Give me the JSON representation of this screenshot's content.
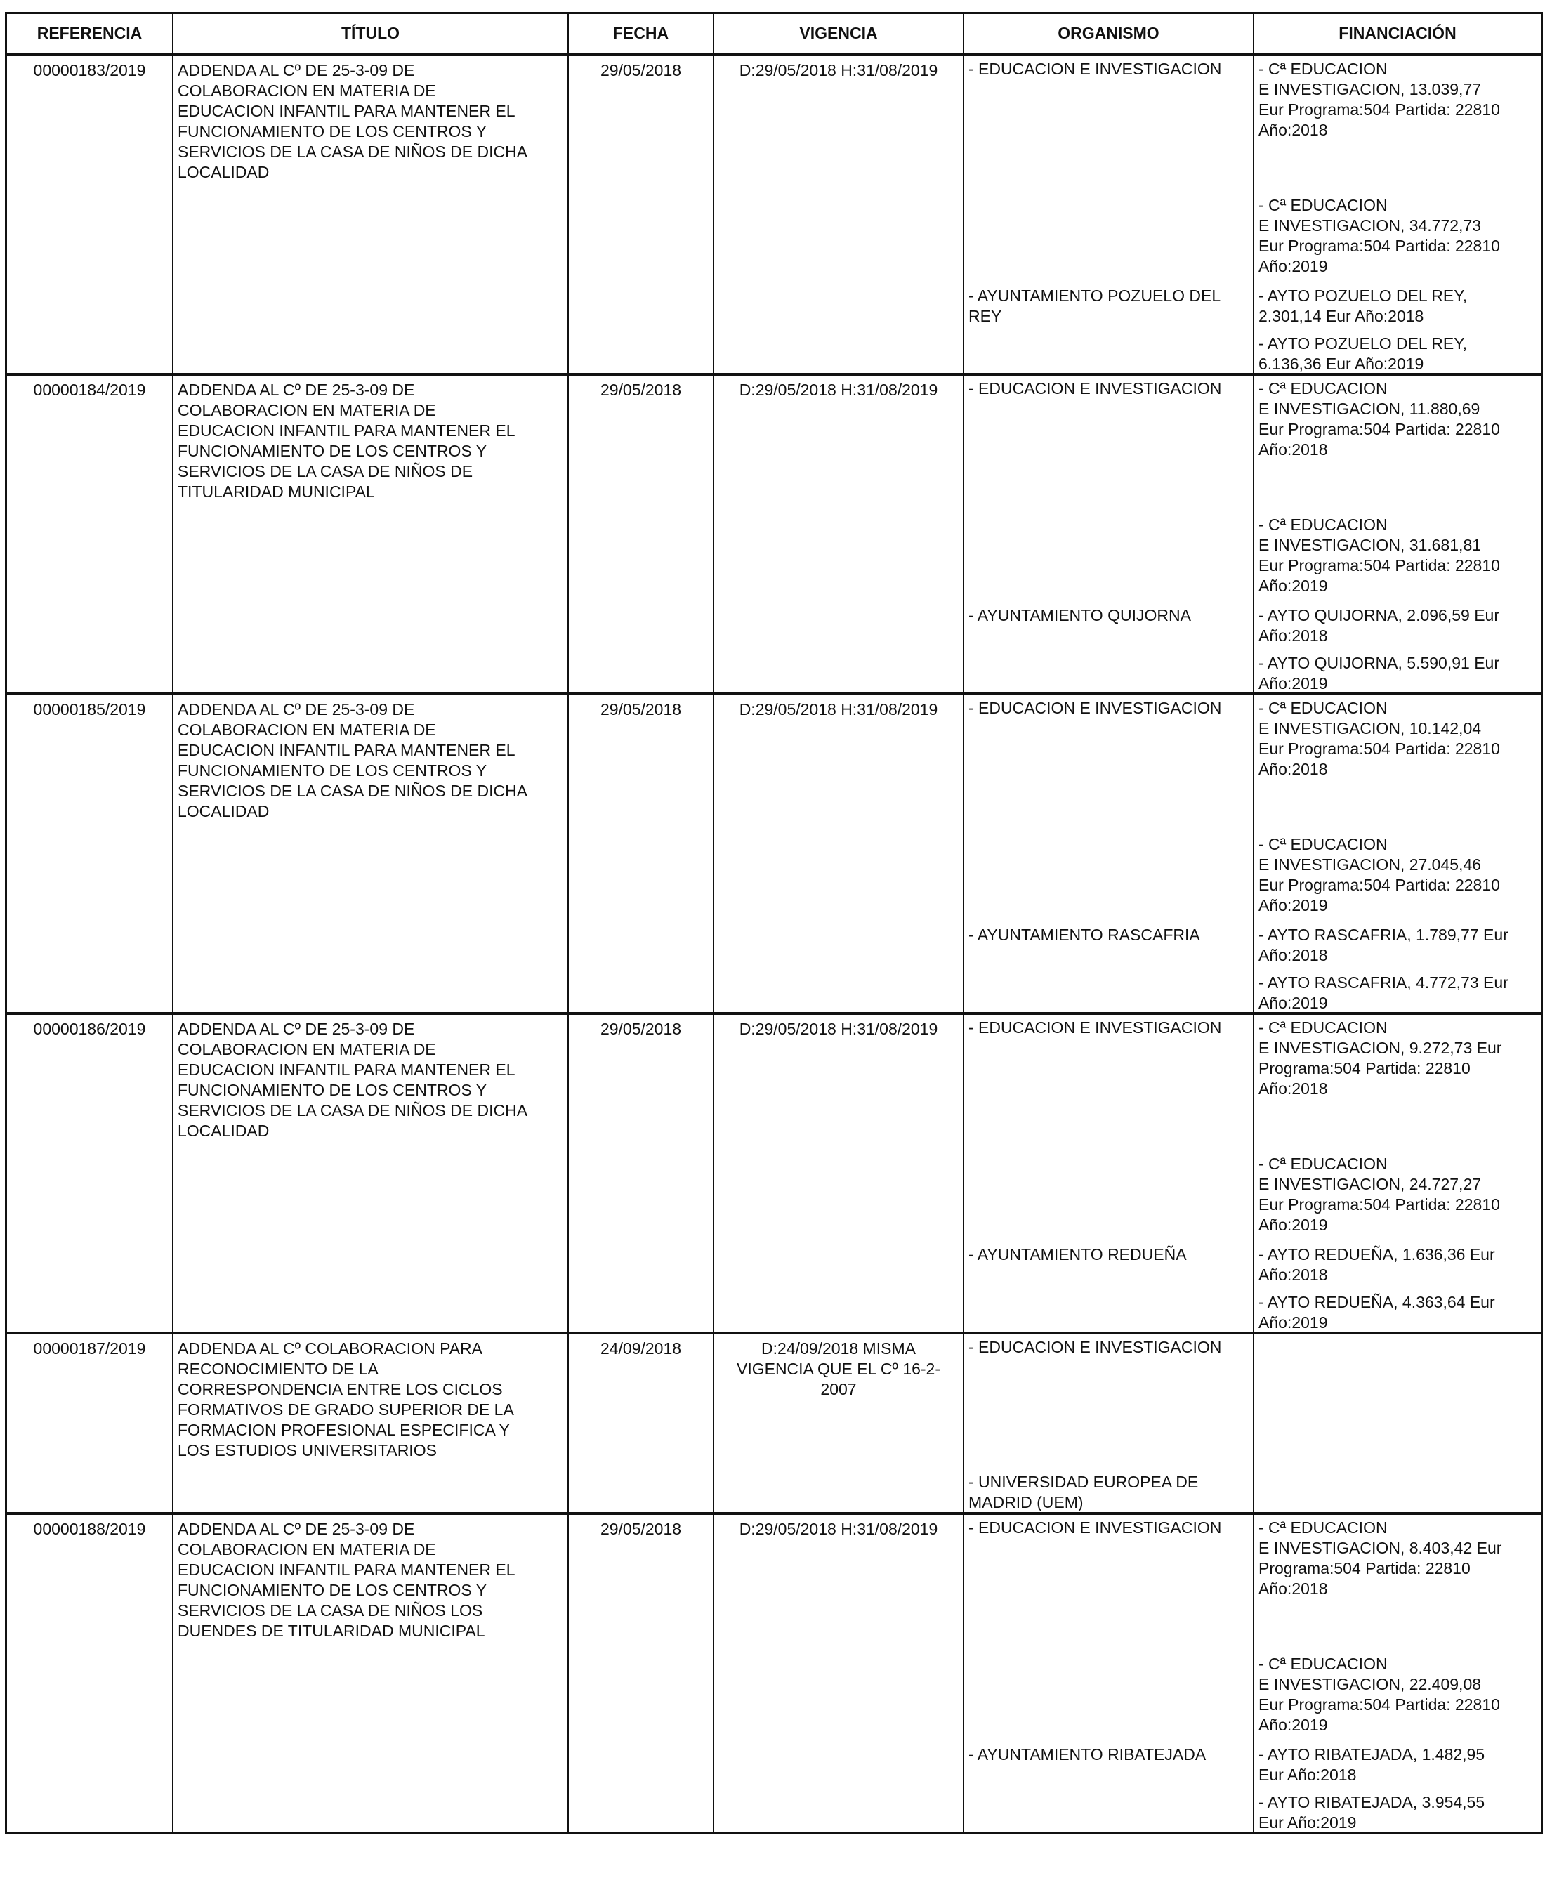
{
  "headers": [
    "REFERENCIA",
    "TÍTULO",
    "FECHA",
    "VIGENCIA",
    "ORGANISMO",
    "FINANCIACIÓN"
  ],
  "rows": [
    {
      "ref": "00000183/2019",
      "titulo": "ADDENDA AL Cº DE 25-3-09 DE\nCOLABORACION EN MATERIA DE\nEDUCACION INFANTIL PARA MANTENER EL\nFUNCIONAMIENTO DE LOS CENTROS Y\nSERVICIOS DE LA CASA DE NIÑOS DE DICHA\nLOCALIDAD",
      "fecha": "29/05/2018",
      "vigencia": "D:29/05/2018 H:31/08/2019",
      "organismos": [
        "- EDUCACION E INVESTIGACION",
        "- AYUNTAMIENTO POZUELO DEL\nREY"
      ],
      "financiacion": [
        "-  Cª EDUCACION\nE INVESTIGACION, 13.039,77\nEur Programa:504  Partida: 22810\nAño:2018",
        "-  Cª EDUCACION\nE INVESTIGACION, 34.772,73\nEur Programa:504  Partida: 22810\nAño:2019",
        "-  AYTO POZUELO DEL REY,\n2.301,14 Eur Año:2018",
        "-  AYTO POZUELO DEL REY,\n6.136,36 Eur Año:2019"
      ]
    },
    {
      "ref": "00000184/2019",
      "titulo": "ADDENDA AL Cº DE 25-3-09 DE\nCOLABORACION EN MATERIA DE\nEDUCACION INFANTIL PARA MANTENER EL\nFUNCIONAMIENTO DE LOS CENTROS Y\nSERVICIOS DE LA CASA DE NIÑOS DE\nTITULARIDAD MUNICIPAL",
      "fecha": "29/05/2018",
      "vigencia": "D:29/05/2018 H:31/08/2019",
      "organismos": [
        "- EDUCACION E INVESTIGACION",
        "- AYUNTAMIENTO QUIJORNA"
      ],
      "financiacion": [
        "-  Cª EDUCACION\nE INVESTIGACION, 11.880,69\nEur Programa:504  Partida: 22810\nAño:2018",
        "-  Cª EDUCACION\nE INVESTIGACION, 31.681,81\nEur Programa:504  Partida: 22810\nAño:2019",
        "-  AYTO QUIJORNA, 2.096,59 Eur\nAño:2018",
        "-  AYTO QUIJORNA, 5.590,91 Eur\nAño:2019"
      ]
    },
    {
      "ref": "00000185/2019",
      "titulo": "ADDENDA AL Cº DE 25-3-09 DE\nCOLABORACION EN MATERIA DE\nEDUCACION INFANTIL PARA MANTENER EL\nFUNCIONAMIENTO DE LOS CENTROS Y\nSERVICIOS DE LA CASA DE NIÑOS DE DICHA\nLOCALIDAD",
      "fecha": "29/05/2018",
      "vigencia": "D:29/05/2018 H:31/08/2019",
      "organismos": [
        "- EDUCACION E INVESTIGACION",
        "- AYUNTAMIENTO RASCAFRIA"
      ],
      "financiacion": [
        "-  Cª EDUCACION\nE INVESTIGACION, 10.142,04\nEur Programa:504  Partida: 22810\nAño:2018",
        "-  Cª EDUCACION\nE INVESTIGACION, 27.045,46\nEur Programa:504  Partida: 22810\nAño:2019",
        "-  AYTO RASCAFRIA, 1.789,77 Eur\nAño:2018",
        "-  AYTO RASCAFRIA, 4.772,73 Eur\nAño:2019"
      ]
    },
    {
      "ref": "00000186/2019",
      "titulo": "ADDENDA AL Cº DE 25-3-09 DE\nCOLABORACION EN MATERIA DE\nEDUCACION INFANTIL PARA MANTENER EL\nFUNCIONAMIENTO DE LOS CENTROS Y\nSERVICIOS DE LA CASA DE NIÑOS DE DICHA\nLOCALIDAD",
      "fecha": "29/05/2018",
      "vigencia": "D:29/05/2018 H:31/08/2019",
      "organismos": [
        "- EDUCACION E INVESTIGACION",
        "- AYUNTAMIENTO REDUEÑA"
      ],
      "financiacion": [
        "-  Cª EDUCACION\nE INVESTIGACION, 9.272,73 Eur\nPrograma:504  Partida: 22810\nAño:2018",
        "-  Cª EDUCACION\nE INVESTIGACION, 24.727,27\nEur Programa:504  Partida: 22810\nAño:2019",
        "-  AYTO REDUEÑA, 1.636,36 Eur\nAño:2018",
        "-  AYTO REDUEÑA, 4.363,64 Eur\nAño:2019"
      ]
    },
    {
      "ref": "00000187/2019",
      "titulo": "ADDENDA AL Cº COLABORACION PARA\nRECONOCIMIENTO DE LA\nCORRESPONDENCIA ENTRE LOS CICLOS\nFORMATIVOS DE GRADO SUPERIOR DE LA\nFORMACION PROFESIONAL ESPECIFICA Y\nLOS ESTUDIOS UNIVERSITARIOS",
      "fecha": "24/09/2018",
      "vigencia": "D:24/09/2018  MISMA\nVIGENCIA QUE EL Cº 16-2-\n2007",
      "organismos": [
        "- EDUCACION E INVESTIGACION",
        "- UNIVERSIDAD EUROPEA DE\nMADRID (UEM)"
      ],
      "financiacion": []
    },
    {
      "ref": "00000188/2019",
      "titulo": "ADDENDA AL Cº DE 25-3-09 DE\nCOLABORACION EN MATERIA DE\nEDUCACION INFANTIL PARA MANTENER EL\nFUNCIONAMIENTO DE LOS CENTROS Y\nSERVICIOS DE LA CASA DE NIÑOS LOS\nDUENDES DE TITULARIDAD MUNICIPAL",
      "fecha": "29/05/2018",
      "vigencia": "D:29/05/2018 H:31/08/2019",
      "organismos": [
        "- EDUCACION E INVESTIGACION",
        "- AYUNTAMIENTO RIBATEJADA"
      ],
      "financiacion": [
        "-  Cª EDUCACION\nE INVESTIGACION, 8.403,42 Eur\nPrograma:504  Partida: 22810\nAño:2018",
        "-  Cª EDUCACION\nE INVESTIGACION, 22.409,08\nEur Programa:504  Partida: 22810\nAño:2019",
        "-  AYTO RIBATEJADA, 1.482,95\nEur Año:2018",
        "-  AYTO RIBATEJADA, 3.954,55\nEur Año:2019"
      ]
    }
  ]
}
